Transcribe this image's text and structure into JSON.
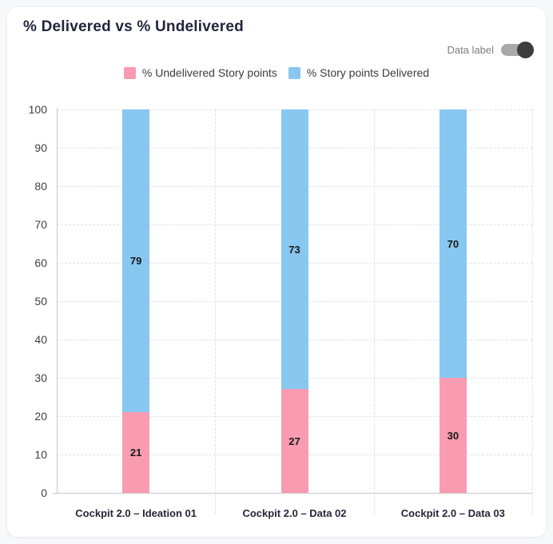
{
  "header": {
    "title": "% Delivered vs % Undelivered",
    "data_label_toggle": {
      "label": "Data label",
      "state": "on"
    }
  },
  "legend": {
    "items": [
      {
        "label": "% Undelivered Story points",
        "color": "#F99BB1"
      },
      {
        "label": "% Story points Delivered",
        "color": "#87C7F0"
      }
    ]
  },
  "chart_data": {
    "type": "bar",
    "stacked": true,
    "title": "% Delivered vs % Undelivered",
    "categories": [
      "Cockpit 2.0 – Ideation 01",
      "Cockpit 2.0 – Data 02",
      "Cockpit 2.0 – Data 03"
    ],
    "series": [
      {
        "name": "% Undelivered Story points",
        "color": "#F99BB1",
        "values": [
          21,
          27,
          30
        ]
      },
      {
        "name": "% Story points Delivered",
        "color": "#87C7F0",
        "values": [
          79,
          73,
          70
        ]
      }
    ],
    "ylim": [
      0,
      100
    ],
    "y_ticks": [
      0,
      10,
      20,
      30,
      40,
      50,
      60,
      70,
      80,
      90,
      100
    ],
    "grid": {
      "horizontal": "dashed",
      "vertical_category_separators": "dashed"
    },
    "data_labels": true,
    "legend_position": "top-center"
  },
  "colors": {
    "undelivered_pink": "#F99BB1",
    "delivered_blue": "#87C7F0",
    "title_text": "#22263C",
    "axis_text": "#3F3F3F",
    "category_text": "#26263A",
    "bar_value_text": "#1A1A1A",
    "muted_text": "#7E7E7E",
    "gridline": "#E3E3E3",
    "axis_line": "#C9C9C9",
    "toggle_track": "#A9A9A9",
    "toggle_knob": "#3D3D3D",
    "card_background": "#FFFFFF",
    "page_background": "#F7F8F9"
  }
}
